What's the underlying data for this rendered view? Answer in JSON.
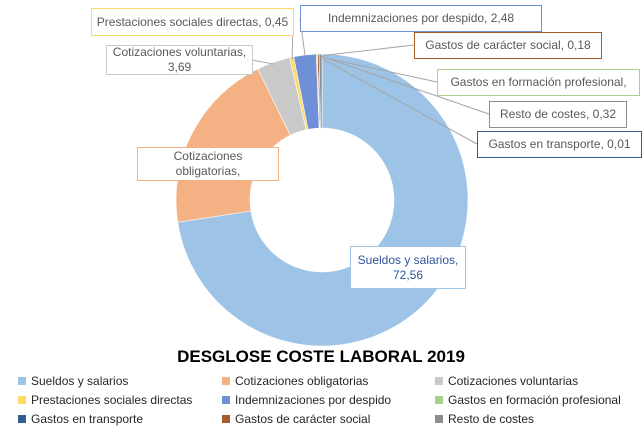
{
  "chart_data": {
    "type": "donut",
    "title": "DESGLOSE COSTE LABORAL 2019",
    "categories": [
      "Sueldos y salarios",
      "Cotizaciones obligatorias",
      "Cotizaciones voluntarias",
      "Prestaciones sociales directas",
      "Indemnizaciones por despido",
      "Gastos en formación profesional",
      "Gastos en transporte",
      "Gastos de carácter social",
      "Resto de costes"
    ],
    "values": [
      72.56,
      20.2,
      3.69,
      0.45,
      2.48,
      0.11,
      0.01,
      0.18,
      0.32
    ],
    "value_labels": [
      "Sueldos y salarios, 72,56",
      "Cotizaciones obligatorias,",
      "Cotizaciones voluntarias, 3,69",
      "Prestaciones sociales directas, 0,45",
      "Indemnizaciones por despido, 2,48",
      "Gastos en formación profesional,",
      "Gastos en transporte, 0,01",
      "Gastos de carácter social, 0,18",
      "Resto de costes, 0,32"
    ],
    "colors": [
      "#9dc3e6",
      "#f4b183",
      "#c9c9c9",
      "#ffd966",
      "#6f8fd6",
      "#a9d18e",
      "#2e5f8f",
      "#a65c2a",
      "#8c8c8c"
    ]
  }
}
